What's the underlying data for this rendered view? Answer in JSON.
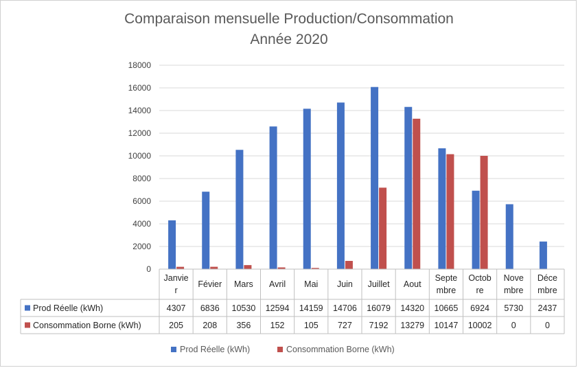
{
  "colors": {
    "prod": "#4472C4",
    "conso": "#C0504D",
    "grid": "#D9D9D9",
    "table": "#BFBFBF"
  },
  "chart_data": {
    "type": "bar",
    "title": "Comparaison mensuelle Production/Consommation",
    "subtitle": "Année 2020",
    "categories": [
      "Janvier",
      "Févier",
      "Mars",
      "Avril",
      "Mai",
      "Juin",
      "Juillet",
      "Aout",
      "Septembre",
      "Octobre",
      "Novembre",
      "Décembre"
    ],
    "category_lines": [
      [
        "Janvie",
        "r"
      ],
      [
        "Févier"
      ],
      [
        "Mars"
      ],
      [
        "Avril"
      ],
      [
        "Mai"
      ],
      [
        "Juin"
      ],
      [
        "Juillet"
      ],
      [
        "Aout"
      ],
      [
        "Septe",
        "mbre"
      ],
      [
        "Octob",
        "re"
      ],
      [
        "Nove",
        "mbre"
      ],
      [
        "Déce",
        "mbre"
      ]
    ],
    "series": [
      {
        "name": "Prod Réelle (kWh)",
        "values": [
          4307,
          6836,
          10530,
          12594,
          14159,
          14706,
          16079,
          14320,
          10665,
          6924,
          5730,
          2437
        ]
      },
      {
        "name": "Consommation Borne (kWh)",
        "values": [
          205,
          208,
          356,
          152,
          105,
          727,
          7192,
          13279,
          10147,
          10002,
          0,
          0
        ]
      }
    ],
    "ylim": [
      0,
      18000
    ],
    "yticks": [
      0,
      2000,
      4000,
      6000,
      8000,
      10000,
      12000,
      14000,
      16000,
      18000
    ],
    "grid": true,
    "legend": "bottom",
    "data_table": true
  }
}
